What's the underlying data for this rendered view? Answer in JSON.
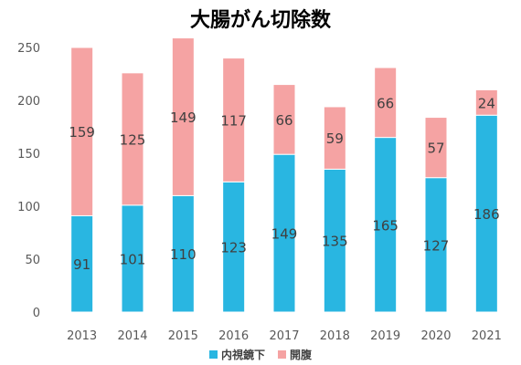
{
  "chart_data": {
    "type": "bar",
    "stacked": true,
    "title": "大腸がん切除数",
    "categories": [
      "2013",
      "2014",
      "2015",
      "2016",
      "2017",
      "2018",
      "2019",
      "2020",
      "2021"
    ],
    "series": [
      {
        "name": "内視鏡下",
        "color": "#29b6e1",
        "values": [
          91,
          101,
          110,
          123,
          149,
          135,
          165,
          127,
          186
        ]
      },
      {
        "name": "開腹",
        "color": "#f5a3a3",
        "values": [
          159,
          125,
          149,
          117,
          66,
          59,
          66,
          57,
          24
        ]
      }
    ],
    "yticks": [
      0,
      50,
      100,
      150,
      200,
      250
    ],
    "ylim": [
      0,
      250
    ],
    "grid": false,
    "legend_position": "bottom"
  }
}
